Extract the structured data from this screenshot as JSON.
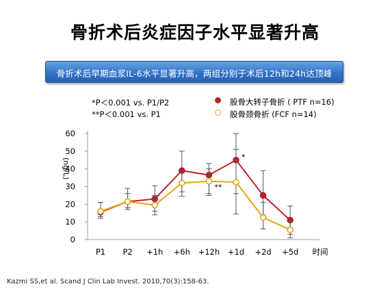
{
  "slide": {
    "title": "骨折术后炎症因子水平显著升高",
    "banner": "骨折术后早期血浆IL-6水平显著升高，两组分别于术后12h和24h达顶峰",
    "notes": [
      "*P＜0.001 vs. P1/P2",
      "**P＜0.001 vs. P1"
    ],
    "citation": "Kazmi SS,et al. Scand J Clin Lab Invest. 2010,70(3):158-63."
  },
  "chart_data": {
    "type": "line",
    "title": "",
    "xlabel": "时间",
    "ylabel": "(ng/L)",
    "categories": [
      "P1",
      "P2",
      "+1h",
      "+6h",
      "+12h",
      "+1d",
      "+2d",
      "+5d"
    ],
    "ylim": [
      0,
      60
    ],
    "yticks": [
      0,
      10,
      20,
      30,
      40,
      50,
      60
    ],
    "legend_position": "top-right",
    "series": [
      {
        "name": "股骨大转子骨折 ( PTF  n=16)",
        "color": "#c0202a",
        "marker": "filled-circle",
        "values": [
          15.5,
          21.5,
          23,
          39,
          36.5,
          45,
          25,
          11
        ],
        "error": [
          [
            12,
            21
          ],
          [
            17,
            29
          ],
          [
            16,
            30.5
          ],
          [
            27,
            50
          ],
          [
            26,
            43
          ],
          [
            26,
            60
          ],
          [
            14,
            39
          ],
          [
            3,
            19
          ]
        ]
      },
      {
        "name": "股骨颈骨折 (FCF  n=14)",
        "color": "#e8a317",
        "marker": "open-circle",
        "values": [
          16,
          21.5,
          19.5,
          32,
          33,
          32.5,
          12.5,
          5.5
        ],
        "error": [
          [
            13,
            21
          ],
          [
            18,
            26
          ],
          [
            14,
            25
          ],
          [
            24.5,
            38
          ],
          [
            25,
            40
          ],
          [
            14.5,
            51
          ],
          [
            6,
            21
          ],
          [
            1,
            10
          ]
        ]
      }
    ],
    "annotations": [
      {
        "text": "*",
        "series": 0,
        "index": 5
      },
      {
        "text": "**",
        "series": 1,
        "index": 4
      }
    ]
  }
}
